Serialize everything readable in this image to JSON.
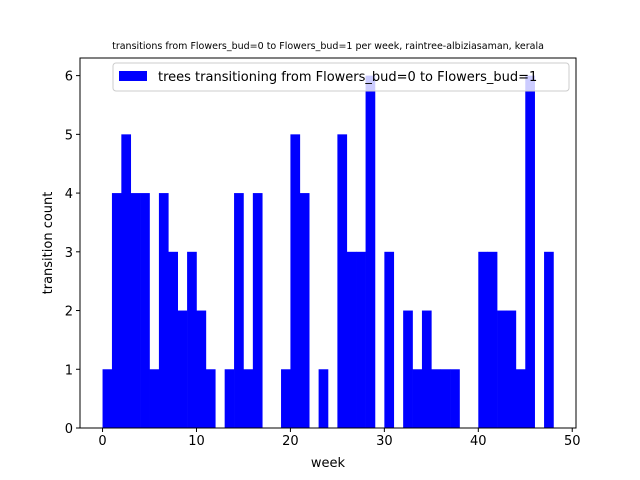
{
  "chart_data": {
    "type": "bar",
    "title": "transitions from Flowers_bud=0 to Flowers_bud=1 per week, raintree-albiziasaman, kerala",
    "xlabel": "week",
    "ylabel": "transition count",
    "xlim": [
      -2.4,
      50.4
    ],
    "ylim": [
      0,
      6.3
    ],
    "xticks": [
      0,
      10,
      20,
      30,
      40,
      50
    ],
    "yticks": [
      0,
      1,
      2,
      3,
      4,
      5,
      6
    ],
    "bar_width": 1,
    "series": [
      {
        "name": "trees transitioning from Flowers_bud=0 to Flowers_bud=1",
        "color": "#0000ff",
        "x": [
          0,
          1,
          2,
          3,
          4,
          5,
          6,
          7,
          8,
          9,
          10,
          11,
          13,
          14,
          15,
          16,
          19,
          20,
          21,
          23,
          25,
          26,
          27,
          28,
          30,
          32,
          33,
          34,
          35,
          36,
          37,
          40,
          41,
          42,
          43,
          44,
          45,
          47
        ],
        "values": [
          1,
          4,
          5,
          4,
          4,
          1,
          4,
          3,
          2,
          3,
          2,
          1,
          1,
          4,
          1,
          4,
          1,
          5,
          4,
          1,
          5,
          3,
          3,
          6,
          3,
          2,
          1,
          2,
          1,
          1,
          1,
          3,
          3,
          2,
          2,
          1,
          6,
          3
        ]
      }
    ],
    "legend_position": "top-right",
    "grid": false
  }
}
